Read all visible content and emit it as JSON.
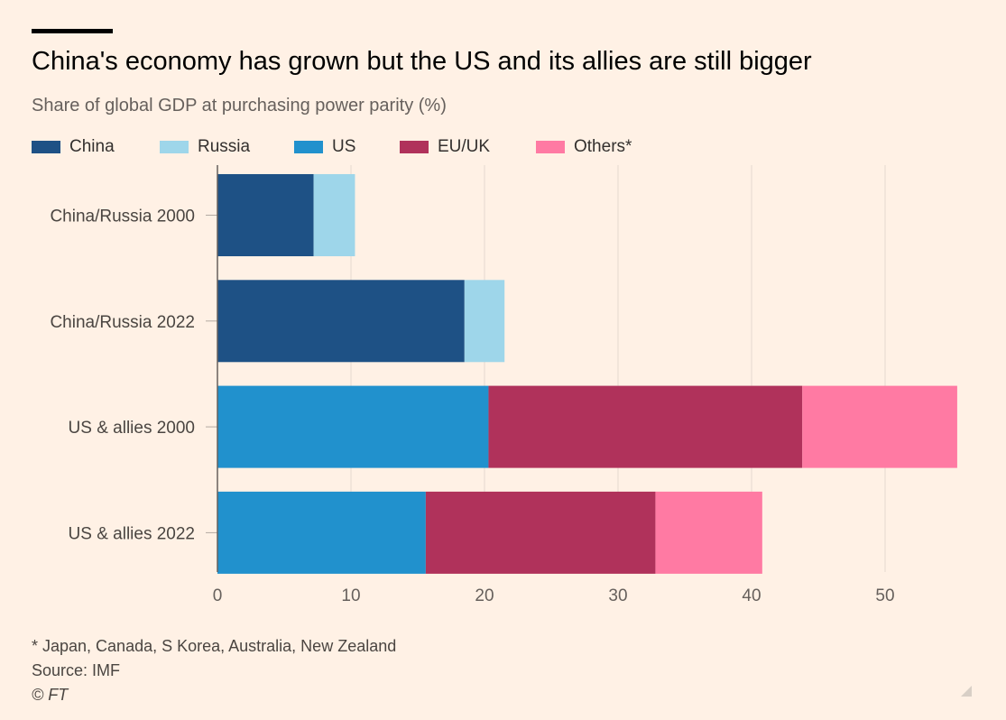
{
  "header": {
    "title": "China's economy has grown but the US and its allies are still bigger",
    "subtitle": "Share of global GDP at purchasing power parity (%)"
  },
  "chart_data": {
    "type": "bar",
    "orientation": "horizontal",
    "stacked": true,
    "categories": [
      "China/Russia 2000",
      "China/Russia 2022",
      "US & allies 2000",
      "US & allies 2022"
    ],
    "series": [
      {
        "name": "China",
        "color": "#1e5185",
        "values": [
          7.2,
          18.5,
          0,
          0
        ]
      },
      {
        "name": "Russia",
        "color": "#9ed6ea",
        "values": [
          3.1,
          3.0,
          0,
          0
        ]
      },
      {
        "name": "US",
        "color": "#2191cd",
        "values": [
          0,
          0,
          20.3,
          15.6
        ]
      },
      {
        "name": "EU/UK",
        "color": "#b0325b",
        "values": [
          0,
          0,
          23.5,
          17.2
        ]
      },
      {
        "name": "Others*",
        "color": "#ff7aa3",
        "values": [
          0,
          0,
          11.6,
          8.0
        ]
      }
    ],
    "xlim": [
      0,
      55
    ],
    "xticks": [
      0,
      10,
      20,
      30,
      40,
      50
    ],
    "grid": true,
    "legend_position": "top-left"
  },
  "footer": {
    "note": "* Japan, Canada, S Korea, Australia, New Zealand",
    "source": "Source: IMF",
    "credit": "© FT"
  }
}
